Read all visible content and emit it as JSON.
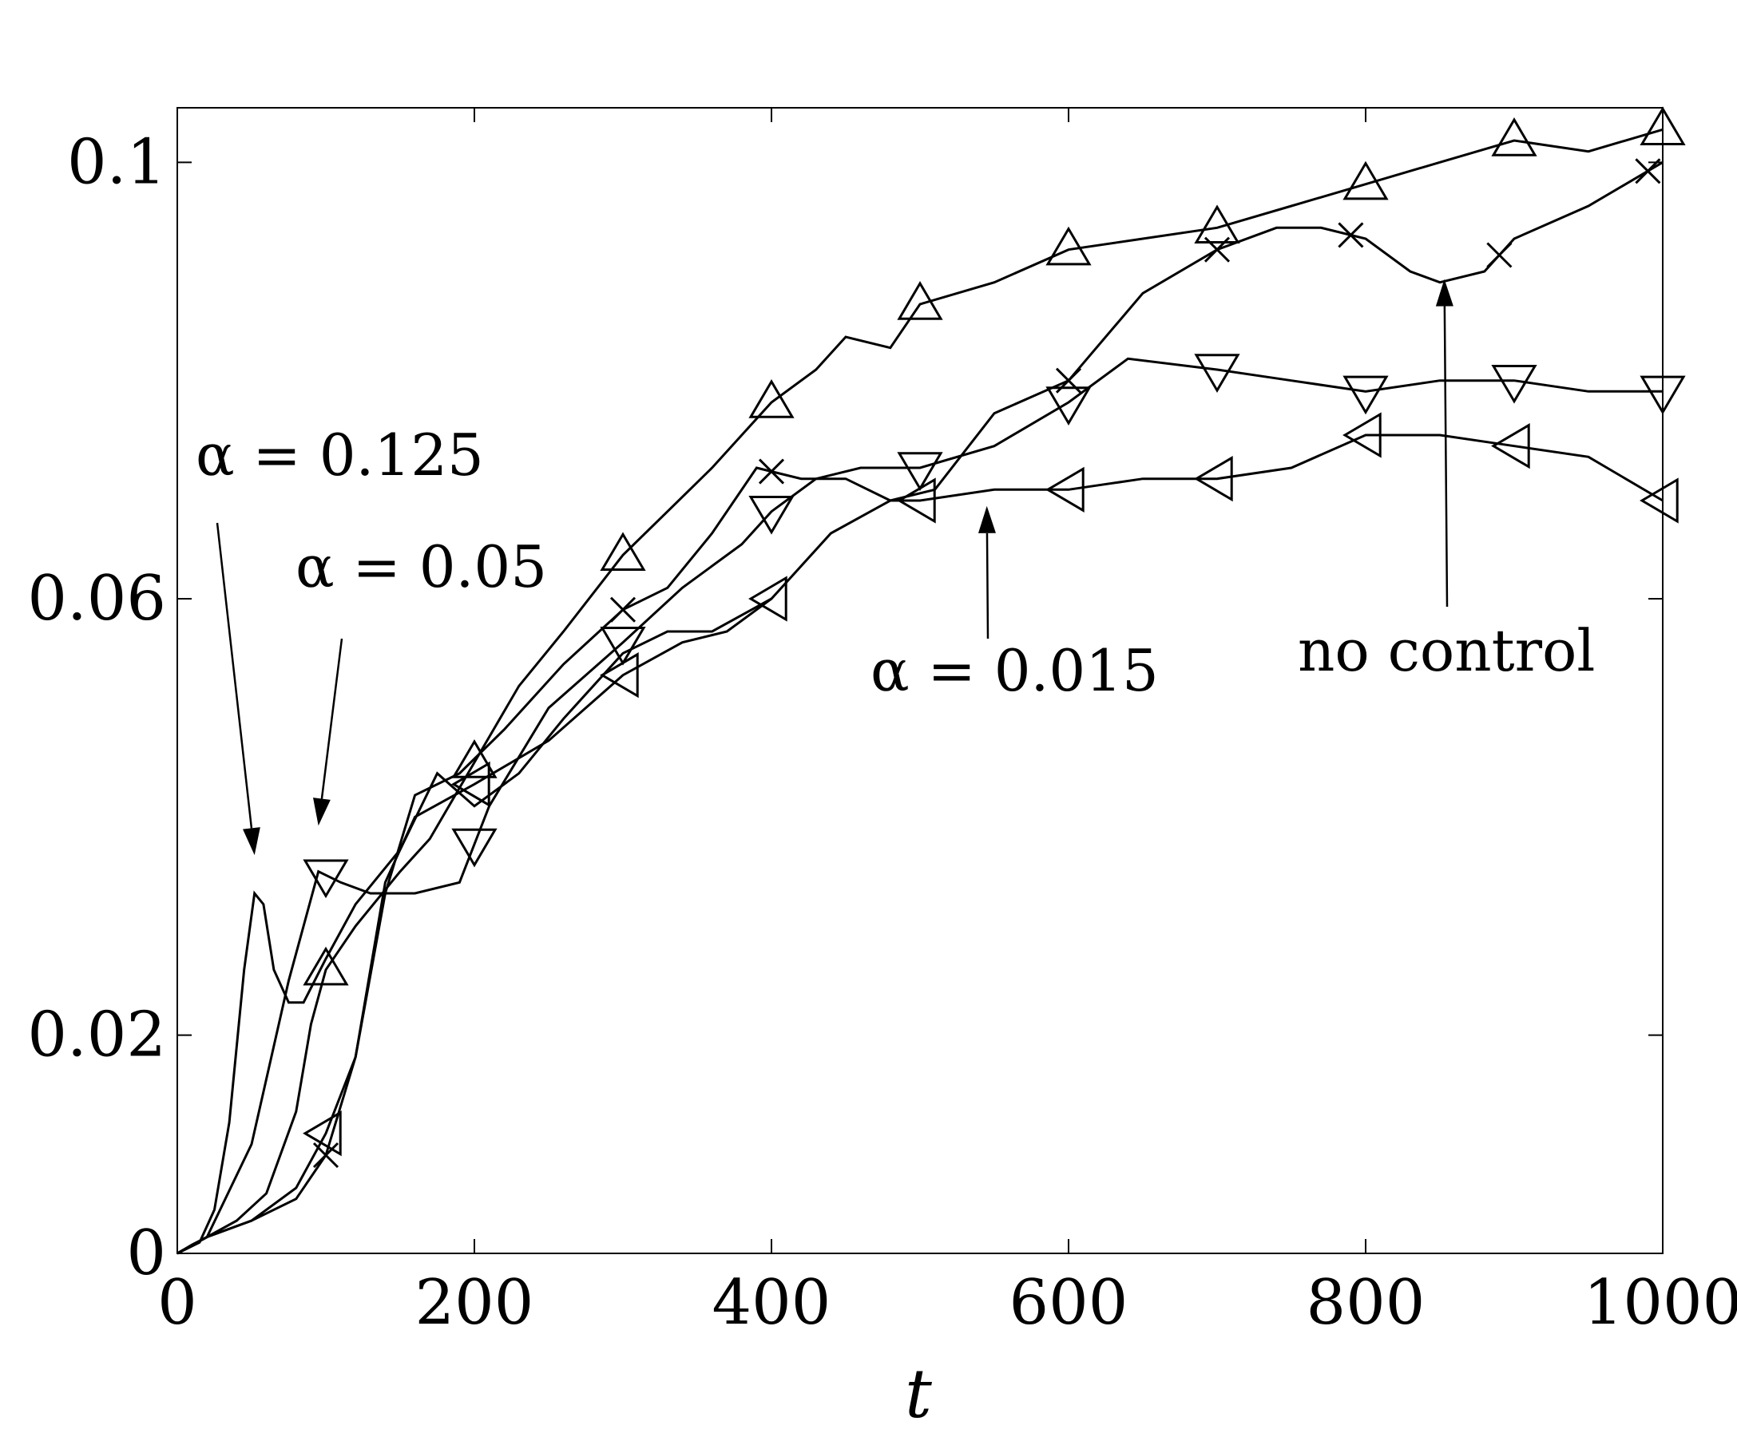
{
  "chart_data": {
    "type": "line",
    "xlabel": "t",
    "ylabel": "",
    "xlim": [
      0,
      1000
    ],
    "ylim": [
      0,
      0.105
    ],
    "xticks": [
      0,
      200,
      400,
      600,
      800,
      1000
    ],
    "xtick_labels": [
      "0",
      "200",
      "400",
      "600",
      "800",
      "1000"
    ],
    "yticks": [
      0,
      0.02,
      0.06,
      0.1
    ],
    "ytick_labels": [
      "0",
      "0.02",
      "0.06",
      "0.1"
    ],
    "grid": false,
    "series": [
      {
        "marker": "triangle-up",
        "points": [
          [
            0,
            0
          ],
          [
            10,
            0.0008
          ],
          [
            20,
            0.0015
          ],
          [
            40,
            0.003
          ],
          [
            60,
            0.0055
          ],
          [
            80,
            0.013
          ],
          [
            90,
            0.021
          ],
          [
            100,
            0.026
          ],
          [
            120,
            0.03
          ],
          [
            150,
            0.035
          ],
          [
            170,
            0.038
          ],
          [
            200,
            0.045
          ],
          [
            230,
            0.052
          ],
          [
            260,
            0.057
          ],
          [
            300,
            0.064
          ],
          [
            330,
            0.068
          ],
          [
            360,
            0.072
          ],
          [
            400,
            0.078
          ],
          [
            430,
            0.081
          ],
          [
            450,
            0.084
          ],
          [
            480,
            0.083
          ],
          [
            500,
            0.087
          ],
          [
            550,
            0.089
          ],
          [
            600,
            0.092
          ],
          [
            650,
            0.093
          ],
          [
            700,
            0.094
          ],
          [
            750,
            0.096
          ],
          [
            800,
            0.098
          ],
          [
            850,
            0.1
          ],
          [
            900,
            0.102
          ],
          [
            950,
            0.101
          ],
          [
            1000,
            0.103
          ]
        ],
        "marker_x": [
          100,
          200,
          300,
          400,
          500,
          600,
          700,
          800,
          900,
          1000
        ]
      },
      {
        "marker": "x",
        "points": [
          [
            0,
            0
          ],
          [
            20,
            0.0015
          ],
          [
            50,
            0.003
          ],
          [
            80,
            0.005
          ],
          [
            100,
            0.009
          ],
          [
            120,
            0.018
          ],
          [
            140,
            0.033
          ],
          [
            160,
            0.042
          ],
          [
            190,
            0.044
          ],
          [
            220,
            0.048
          ],
          [
            260,
            0.054
          ],
          [
            300,
            0.059
          ],
          [
            330,
            0.061
          ],
          [
            360,
            0.066
          ],
          [
            390,
            0.072
          ],
          [
            420,
            0.071
          ],
          [
            450,
            0.071
          ],
          [
            480,
            0.069
          ],
          [
            510,
            0.07
          ],
          [
            550,
            0.077
          ],
          [
            600,
            0.08
          ],
          [
            650,
            0.088
          ],
          [
            700,
            0.092
          ],
          [
            740,
            0.094
          ],
          [
            770,
            0.094
          ],
          [
            800,
            0.093
          ],
          [
            830,
            0.09
          ],
          [
            850,
            0.089
          ],
          [
            880,
            0.09
          ],
          [
            900,
            0.093
          ],
          [
            950,
            0.096
          ],
          [
            1000,
            0.1
          ]
        ],
        "marker_x": [
          100,
          300,
          400,
          600,
          700,
          790,
          890,
          990
        ]
      },
      {
        "marker": "triangle-down",
        "points": [
          [
            0,
            0
          ],
          [
            20,
            0.0015
          ],
          [
            50,
            0.01
          ],
          [
            75,
            0.025
          ],
          [
            95,
            0.035
          ],
          [
            110,
            0.034
          ],
          [
            130,
            0.033
          ],
          [
            160,
            0.033
          ],
          [
            190,
            0.034
          ],
          [
            210,
            0.041
          ],
          [
            250,
            0.05
          ],
          [
            300,
            0.056
          ],
          [
            340,
            0.061
          ],
          [
            380,
            0.065
          ],
          [
            400,
            0.068
          ],
          [
            430,
            0.071
          ],
          [
            460,
            0.072
          ],
          [
            500,
            0.072
          ],
          [
            550,
            0.074
          ],
          [
            600,
            0.078
          ],
          [
            640,
            0.082
          ],
          [
            700,
            0.081
          ],
          [
            750,
            0.08
          ],
          [
            800,
            0.079
          ],
          [
            850,
            0.08
          ],
          [
            900,
            0.08
          ],
          [
            950,
            0.079
          ],
          [
            1000,
            0.079
          ]
        ],
        "marker_x": [
          100,
          200,
          300,
          400,
          500,
          600,
          700,
          800,
          900,
          1000
        ]
      },
      {
        "marker": "triangle-left",
        "points": [
          [
            0,
            0
          ],
          [
            20,
            0.0015
          ],
          [
            50,
            0.003
          ],
          [
            80,
            0.006
          ],
          [
            100,
            0.011
          ],
          [
            120,
            0.018
          ],
          [
            140,
            0.034
          ],
          [
            160,
            0.04
          ],
          [
            200,
            0.043
          ],
          [
            250,
            0.047
          ],
          [
            300,
            0.053
          ],
          [
            340,
            0.056
          ],
          [
            370,
            0.057
          ],
          [
            400,
            0.06
          ],
          [
            440,
            0.066
          ],
          [
            480,
            0.069
          ],
          [
            500,
            0.069
          ],
          [
            550,
            0.07
          ],
          [
            600,
            0.07
          ],
          [
            650,
            0.071
          ],
          [
            700,
            0.071
          ],
          [
            750,
            0.072
          ],
          [
            800,
            0.075
          ],
          [
            850,
            0.075
          ],
          [
            900,
            0.074
          ],
          [
            950,
            0.073
          ],
          [
            1000,
            0.069
          ]
        ],
        "marker_x": [
          100,
          200,
          300,
          400,
          500,
          600,
          700,
          800,
          900,
          1000
        ]
      },
      {
        "marker": "none",
        "points": [
          [
            0,
            0
          ],
          [
            15,
            0.001
          ],
          [
            25,
            0.004
          ],
          [
            35,
            0.012
          ],
          [
            45,
            0.026
          ],
          [
            52,
            0.033
          ],
          [
            58,
            0.032
          ],
          [
            65,
            0.026
          ],
          [
            75,
            0.023
          ],
          [
            85,
            0.023
          ],
          [
            100,
            0.027
          ],
          [
            120,
            0.032
          ],
          [
            150,
            0.037
          ],
          [
            175,
            0.044
          ],
          [
            200,
            0.041
          ],
          [
            230,
            0.044
          ],
          [
            260,
            0.049
          ],
          [
            300,
            0.055
          ],
          [
            330,
            0.057
          ],
          [
            360,
            0.057
          ],
          [
            400,
            0.06
          ]
        ],
        "marker_x": []
      }
    ],
    "annotations": [
      {
        "text": "α = 0.125"
      },
      {
        "text": "α = 0.05"
      },
      {
        "text": "α = 0.015"
      },
      {
        "text": "no control"
      }
    ]
  }
}
